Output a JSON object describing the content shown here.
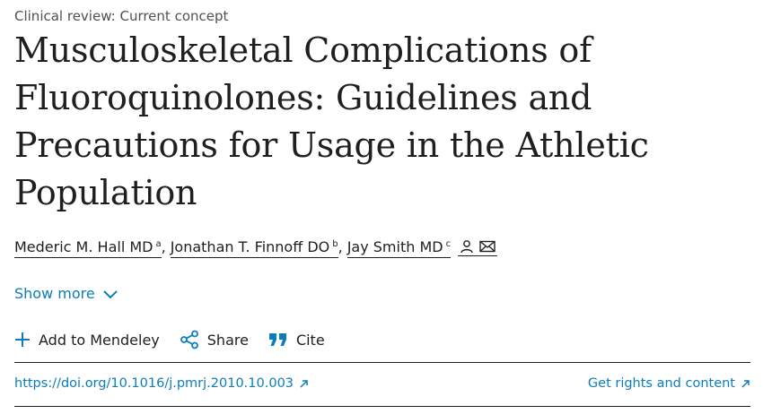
{
  "article": {
    "type_label": "Clinical review: Current concept",
    "title": "Musculoskeletal Complications of Fluoroquinolones: Guidelines and Precautions for Usage in the Athletic Population"
  },
  "authors": [
    {
      "name": "Mederic M. Hall MD",
      "affiliation": "a"
    },
    {
      "name": "Jonathan T. Finnoff DO",
      "affiliation": "b"
    },
    {
      "name": "Jay Smith MD",
      "affiliation": "c"
    }
  ],
  "author_separator": ",",
  "contact_icons": [
    "person-icon",
    "envelope-icon"
  ],
  "show_more": {
    "label": "Show more",
    "icon": "chevron-down-icon"
  },
  "actions": [
    {
      "label": "Add to Mendeley",
      "icon": "plus-icon"
    },
    {
      "label": "Share",
      "icon": "share-icon"
    },
    {
      "label": "Cite",
      "icon": "quote-icon"
    }
  ],
  "links": {
    "doi": "https://doi.org/10.1016/j.pmrj.2010.10.003",
    "rights": "Get rights and content",
    "external_icon": "external-arrow-icon"
  },
  "colors": {
    "link": "#0c7dbb",
    "text": "#1f1f1f",
    "muted": "#505050"
  }
}
